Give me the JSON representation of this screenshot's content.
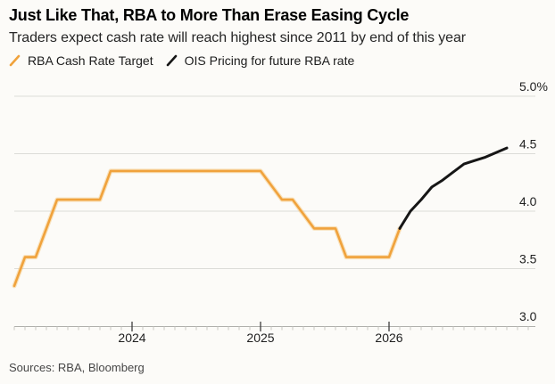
{
  "footer": {
    "source": "Sources: RBA, Bloomberg"
  },
  "chart_data": {
    "type": "line",
    "title": "Just Like That, RBA to More Than Erase Easing Cycle",
    "subtitle": "Traders expect cash rate will reach highest since 2011 by end of this year",
    "unit": "%",
    "ylim": [
      3.0,
      5.0
    ],
    "grid": "horizontal",
    "legend_position": "top-left",
    "colors": {
      "background": "#FCFBF8",
      "grid": "#DCDCD8",
      "axis": "#B0B0AC",
      "tick_minor": "#C7C7C2",
      "tick_major": "#3C3C3C",
      "label_text": "#1F1F1F",
      "rba_line_halo": "#F6C97F"
    },
    "yticks": [
      {
        "label": "5.0%",
        "value": 5.0
      },
      {
        "label": "4.5",
        "value": 4.5
      },
      {
        "label": "4.0",
        "value": 4.0
      },
      {
        "label": "3.5",
        "value": 3.5
      },
      {
        "label": "3.0",
        "value": 3.0
      }
    ],
    "xticks": [
      {
        "label": "2024",
        "month": "2024-01"
      },
      {
        "label": "2025",
        "month": "2025-01"
      },
      {
        "label": "2026",
        "month": "2026-01"
      }
    ],
    "series": [
      {
        "name": "RBA Cash Rate Target",
        "color": "#F0A23C",
        "points": [
          [
            "2023-02",
            3.35
          ],
          [
            "2023-03",
            3.6
          ],
          [
            "2023-04",
            3.6
          ],
          [
            "2023-05",
            3.85
          ],
          [
            "2023-06",
            4.1
          ],
          [
            "2023-10",
            4.1
          ],
          [
            "2023-11",
            4.35
          ],
          [
            "2025-01",
            4.35
          ],
          [
            "2025-03",
            4.1
          ],
          [
            "2025-04",
            4.1
          ],
          [
            "2025-06",
            3.85
          ],
          [
            "2025-08",
            3.85
          ],
          [
            "2025-09",
            3.6
          ],
          [
            "2026-01",
            3.6
          ],
          [
            "2026-02",
            3.85
          ]
        ]
      },
      {
        "name": "OIS Pricing for future RBA rate",
        "color": "#161616",
        "points": [
          [
            "2026-02",
            3.85
          ],
          [
            "2026-03",
            4.0
          ],
          [
            "2026-04",
            4.1
          ],
          [
            "2026-05",
            4.21
          ],
          [
            "2026-06",
            4.27
          ],
          [
            "2026-07",
            4.34
          ],
          [
            "2026-08",
            4.41
          ],
          [
            "2026-09",
            4.44
          ],
          [
            "2026-10",
            4.47
          ],
          [
            "2026-11",
            4.51
          ],
          [
            "2026-12",
            4.55
          ]
        ]
      }
    ]
  }
}
